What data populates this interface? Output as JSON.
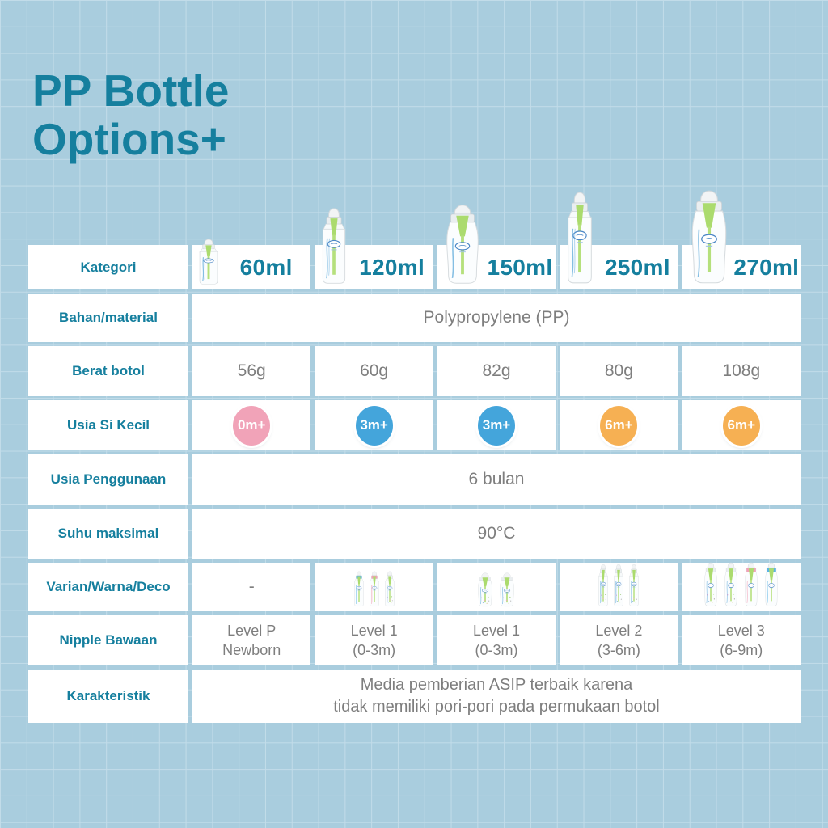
{
  "title": {
    "line1": "PP Bottle",
    "line2": "Options+"
  },
  "colors": {
    "accent_teal": "#157f9e",
    "value_gray": "#7e7e7e",
    "background_blue": "#a9cdde",
    "badge_pink": "#f1a3b8",
    "badge_blue": "#44a5db",
    "badge_orange": "#f6b053",
    "bottle_green": "#abdb6e"
  },
  "table": {
    "row_labels": [
      "Kategori",
      "Bahan/material",
      "Berat botol",
      "Usia Si Kecil",
      "Usia Penggunaan",
      "Suhu maksimal",
      "Varian/Warna/Deco",
      "Nipple Bawaan",
      "Karakteristik"
    ],
    "columns": [
      {
        "size": "60ml",
        "bottle": "narrow-xs"
      },
      {
        "size": "120ml",
        "bottle": "narrow-md"
      },
      {
        "size": "150ml",
        "bottle": "wide-md"
      },
      {
        "size": "250ml",
        "bottle": "narrow-lg"
      },
      {
        "size": "270ml",
        "bottle": "wide-lg"
      }
    ],
    "bahan_material": "Polypropylene (PP)",
    "berat_botol": [
      "56g",
      "60g",
      "82g",
      "80g",
      "108g"
    ],
    "usia_si_kecil": [
      {
        "label": "0m+",
        "color": "#f1a3b8"
      },
      {
        "label": "3m+",
        "color": "#44a5db"
      },
      {
        "label": "3m+",
        "color": "#44a5db"
      },
      {
        "label": "6m+",
        "color": "#f6b053"
      },
      {
        "label": "6m+",
        "color": "#f6b053"
      }
    ],
    "usia_penggunaan": "6 bulan",
    "suhu_maksimal": "90°C",
    "varian": [
      {
        "label": "-",
        "bottles": []
      },
      {
        "label": "",
        "bottles": [
          {
            "shape": "narrow",
            "cap": "#5ab4e5"
          },
          {
            "shape": "narrow",
            "cap": "#f2a0b6"
          },
          {
            "shape": "narrow",
            "cap": "deco"
          }
        ]
      },
      {
        "label": "",
        "bottles": [
          {
            "shape": "wide",
            "cap": "deco"
          },
          {
            "shape": "wide",
            "cap": "deco"
          }
        ]
      },
      {
        "label": "",
        "bottles": [
          {
            "shape": "narrow-tall",
            "cap": "deco"
          },
          {
            "shape": "narrow-tall",
            "cap": "deco"
          },
          {
            "shape": "narrow-tall",
            "cap": "deco"
          }
        ]
      },
      {
        "label": "",
        "bottles": [
          {
            "shape": "wide-tall",
            "cap": "deco"
          },
          {
            "shape": "wide-tall",
            "cap": "deco"
          },
          {
            "shape": "wide-tall",
            "cap": "#f2a0b6"
          },
          {
            "shape": "wide-tall",
            "cap": "#5ab4e5"
          }
        ]
      }
    ],
    "nipple_bawaan": [
      {
        "line1": "Level P",
        "line2": "Newborn"
      },
      {
        "line1": "Level 1",
        "line2": "(0-3m)"
      },
      {
        "line1": "Level 1",
        "line2": "(0-3m)"
      },
      {
        "line1": "Level 2",
        "line2": "(3-6m)"
      },
      {
        "line1": "Level 3",
        "line2": "(6-9m)"
      }
    ],
    "karakteristik": {
      "line1": "Media pemberian ASIP terbaik karena",
      "line2": "tidak memiliki pori-pori pada permukaan botol"
    }
  },
  "chart_data": {
    "type": "table",
    "title": "PP Bottle Options+",
    "columns": [
      "60ml",
      "120ml",
      "150ml",
      "250ml",
      "270ml"
    ],
    "rows": [
      {
        "label": "Kategori",
        "values": [
          "60ml",
          "120ml",
          "150ml",
          "250ml",
          "270ml"
        ]
      },
      {
        "label": "Bahan/material",
        "values": [
          "Polypropylene (PP)"
        ],
        "spans_all_columns": true
      },
      {
        "label": "Berat botol",
        "values": [
          "56g",
          "60g",
          "82g",
          "80g",
          "108g"
        ]
      },
      {
        "label": "Usia Si Kecil",
        "values": [
          "0m+",
          "3m+",
          "3m+",
          "6m+",
          "6m+"
        ]
      },
      {
        "label": "Usia Penggunaan",
        "values": [
          "6 bulan"
        ],
        "spans_all_columns": true
      },
      {
        "label": "Suhu maksimal",
        "values": [
          "90°C"
        ],
        "spans_all_columns": true
      },
      {
        "label": "Varian/Warna/Deco",
        "values": [
          "-",
          "3 bottles (blue, pink, deco)",
          "2 bottles (deco)",
          "3 bottles (deco)",
          "4 bottles (deco, deco, pink, blue)"
        ]
      },
      {
        "label": "Nipple Bawaan",
        "values": [
          "Level P Newborn",
          "Level 1 (0-3m)",
          "Level 1 (0-3m)",
          "Level 2 (3-6m)",
          "Level 3 (6-9m)"
        ]
      },
      {
        "label": "Karakteristik",
        "values": [
          "Media pemberian ASIP terbaik karena tidak memiliki pori-pori pada permukaan botol"
        ],
        "spans_all_columns": true
      }
    ]
  }
}
